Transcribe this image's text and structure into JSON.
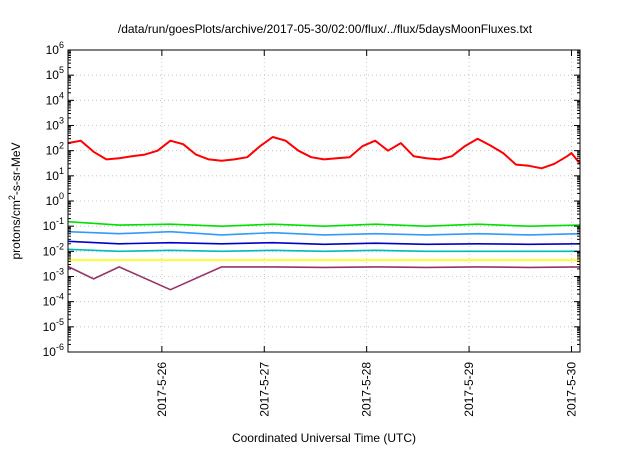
{
  "chart_data": {
    "type": "line",
    "title": "/data/run/goesPlots/archive/2017-05-30/02:00/flux/../flux/5daysMoonFluxes.txt",
    "xlabel": "Coordinated Universal Time (UTC)",
    "ylabel": "protons/cm²-s-sr-MeV",
    "ylabel_parts": {
      "prefix": "protons/cm",
      "sup": "2",
      "suffix": "-s-sr-MeV"
    },
    "y_scale": "log",
    "ylim_exp": [
      -6,
      6
    ],
    "y_tick_exponents": [
      -6,
      -5,
      -4,
      -3,
      -2,
      -1,
      0,
      1,
      2,
      3,
      4,
      5,
      6
    ],
    "y_tick_base": "10",
    "xlim_days": [
      "2017-5-25T02:00",
      "2017-5-30T02:00"
    ],
    "x_ticks": [
      {
        "label": "2017-5-26",
        "date": "2017-5-26"
      },
      {
        "label": "2017-5-27",
        "date": "2017-5-27"
      },
      {
        "label": "2017-5-28",
        "date": "2017-5-28"
      },
      {
        "label": "2017-5-29",
        "date": "2017-5-29"
      },
      {
        "label": "2017-5-30",
        "date": "2017-5-30"
      }
    ],
    "grid": true,
    "legend": false,
    "series": [
      {
        "color": "#ff0000",
        "points": [
          [
            "2017-5-25T02:00",
            200
          ],
          [
            "2017-5-25T05:00",
            250
          ],
          [
            "2017-5-25T08:00",
            90
          ],
          [
            "2017-5-25T11:00",
            45
          ],
          [
            "2017-5-25T14:00",
            50
          ],
          [
            "2017-5-25T17:00",
            60
          ],
          [
            "2017-5-25T20:00",
            70
          ],
          [
            "2017-5-25T23:00",
            100
          ],
          [
            "2017-5-26T02:00",
            250
          ],
          [
            "2017-5-26T05:00",
            180
          ],
          [
            "2017-5-26T08:00",
            70
          ],
          [
            "2017-5-26T11:00",
            45
          ],
          [
            "2017-5-26T14:00",
            40
          ],
          [
            "2017-5-26T17:00",
            45
          ],
          [
            "2017-5-26T20:00",
            55
          ],
          [
            "2017-5-26T23:00",
            150
          ],
          [
            "2017-5-27T02:00",
            350
          ],
          [
            "2017-5-27T05:00",
            250
          ],
          [
            "2017-5-27T08:00",
            100
          ],
          [
            "2017-5-27T11:00",
            55
          ],
          [
            "2017-5-27T14:00",
            45
          ],
          [
            "2017-5-27T17:00",
            50
          ],
          [
            "2017-5-27T20:00",
            55
          ],
          [
            "2017-5-27T23:00",
            150
          ],
          [
            "2017-5-28T02:00",
            250
          ],
          [
            "2017-5-28T05:00",
            100
          ],
          [
            "2017-5-28T08:00",
            200
          ],
          [
            "2017-5-28T11:00",
            60
          ],
          [
            "2017-5-28T14:00",
            50
          ],
          [
            "2017-5-28T17:00",
            45
          ],
          [
            "2017-5-28T20:00",
            60
          ],
          [
            "2017-5-28T23:00",
            150
          ],
          [
            "2017-5-29T02:00",
            300
          ],
          [
            "2017-5-29T05:00",
            160
          ],
          [
            "2017-5-29T08:00",
            80
          ],
          [
            "2017-5-29T11:00",
            28
          ],
          [
            "2017-5-29T14:00",
            25
          ],
          [
            "2017-5-29T17:00",
            20
          ],
          [
            "2017-5-29T20:00",
            30
          ],
          [
            "2017-5-29T23:00",
            60
          ],
          [
            "2017-5-30T00:00",
            80
          ],
          [
            "2017-5-30T02:00",
            30
          ]
        ]
      },
      {
        "color": "#00e000",
        "points": [
          [
            "2017-5-25T02:00",
            0.15
          ],
          [
            "2017-5-25T14:00",
            0.11
          ],
          [
            "2017-5-26T02:00",
            0.12
          ],
          [
            "2017-5-26T14:00",
            0.1
          ],
          [
            "2017-5-27T02:00",
            0.12
          ],
          [
            "2017-5-27T14:00",
            0.1
          ],
          [
            "2017-5-28T02:00",
            0.12
          ],
          [
            "2017-5-28T14:00",
            0.1
          ],
          [
            "2017-5-29T02:00",
            0.12
          ],
          [
            "2017-5-29T14:00",
            0.1
          ],
          [
            "2017-5-30T02:00",
            0.11
          ]
        ]
      },
      {
        "color": "#3399ff",
        "points": [
          [
            "2017-5-25T02:00",
            0.06
          ],
          [
            "2017-5-25T14:00",
            0.05
          ],
          [
            "2017-5-26T02:00",
            0.06
          ],
          [
            "2017-5-26T14:00",
            0.045
          ],
          [
            "2017-5-27T02:00",
            0.055
          ],
          [
            "2017-5-27T14:00",
            0.045
          ],
          [
            "2017-5-28T02:00",
            0.05
          ],
          [
            "2017-5-28T14:00",
            0.045
          ],
          [
            "2017-5-29T02:00",
            0.05
          ],
          [
            "2017-5-29T14:00",
            0.045
          ],
          [
            "2017-5-30T02:00",
            0.05
          ]
        ]
      },
      {
        "color": "#0000cc",
        "points": [
          [
            "2017-5-25T02:00",
            0.025
          ],
          [
            "2017-5-25T14:00",
            0.02
          ],
          [
            "2017-5-26T02:00",
            0.022
          ],
          [
            "2017-5-26T14:00",
            0.02
          ],
          [
            "2017-5-27T02:00",
            0.022
          ],
          [
            "2017-5-27T14:00",
            0.019
          ],
          [
            "2017-5-28T02:00",
            0.021
          ],
          [
            "2017-5-28T14:00",
            0.019
          ],
          [
            "2017-5-29T02:00",
            0.02
          ],
          [
            "2017-5-29T14:00",
            0.019
          ],
          [
            "2017-5-30T02:00",
            0.02
          ]
        ]
      },
      {
        "color": "#00bbbb",
        "points": [
          [
            "2017-5-25T02:00",
            0.012
          ],
          [
            "2017-5-25T14:00",
            0.01
          ],
          [
            "2017-5-26T02:00",
            0.011
          ],
          [
            "2017-5-26T14:00",
            0.01
          ],
          [
            "2017-5-27T02:00",
            0.011
          ],
          [
            "2017-5-27T14:00",
            0.01
          ],
          [
            "2017-5-28T02:00",
            0.011
          ],
          [
            "2017-5-28T14:00",
            0.01
          ],
          [
            "2017-5-29T02:00",
            0.01
          ],
          [
            "2017-5-29T14:00",
            0.01
          ],
          [
            "2017-5-30T02:00",
            0.01
          ]
        ]
      },
      {
        "color": "#ffff00",
        "points": [
          [
            "2017-5-25T02:00",
            0.0045
          ],
          [
            "2017-5-26T02:00",
            0.0045
          ],
          [
            "2017-5-27T02:00",
            0.0045
          ],
          [
            "2017-5-28T02:00",
            0.0045
          ],
          [
            "2017-5-29T02:00",
            0.0045
          ],
          [
            "2017-5-30T02:00",
            0.0045
          ]
        ]
      },
      {
        "color": "#993366",
        "points": [
          [
            "2017-5-25T02:00",
            0.0025
          ],
          [
            "2017-5-25T08:00",
            0.0008
          ],
          [
            "2017-5-25T14:00",
            0.0024
          ],
          [
            "2017-5-26T02:00",
            0.0003
          ],
          [
            "2017-5-26T14:00",
            0.0024
          ],
          [
            "2017-5-27T02:00",
            0.0024
          ],
          [
            "2017-5-27T14:00",
            0.0023
          ],
          [
            "2017-5-28T02:00",
            0.0024
          ],
          [
            "2017-5-28T14:00",
            0.0023
          ],
          [
            "2017-5-29T02:00",
            0.0024
          ],
          [
            "2017-5-29T14:00",
            0.0023
          ],
          [
            "2017-5-30T02:00",
            0.0024
          ]
        ]
      }
    ]
  }
}
